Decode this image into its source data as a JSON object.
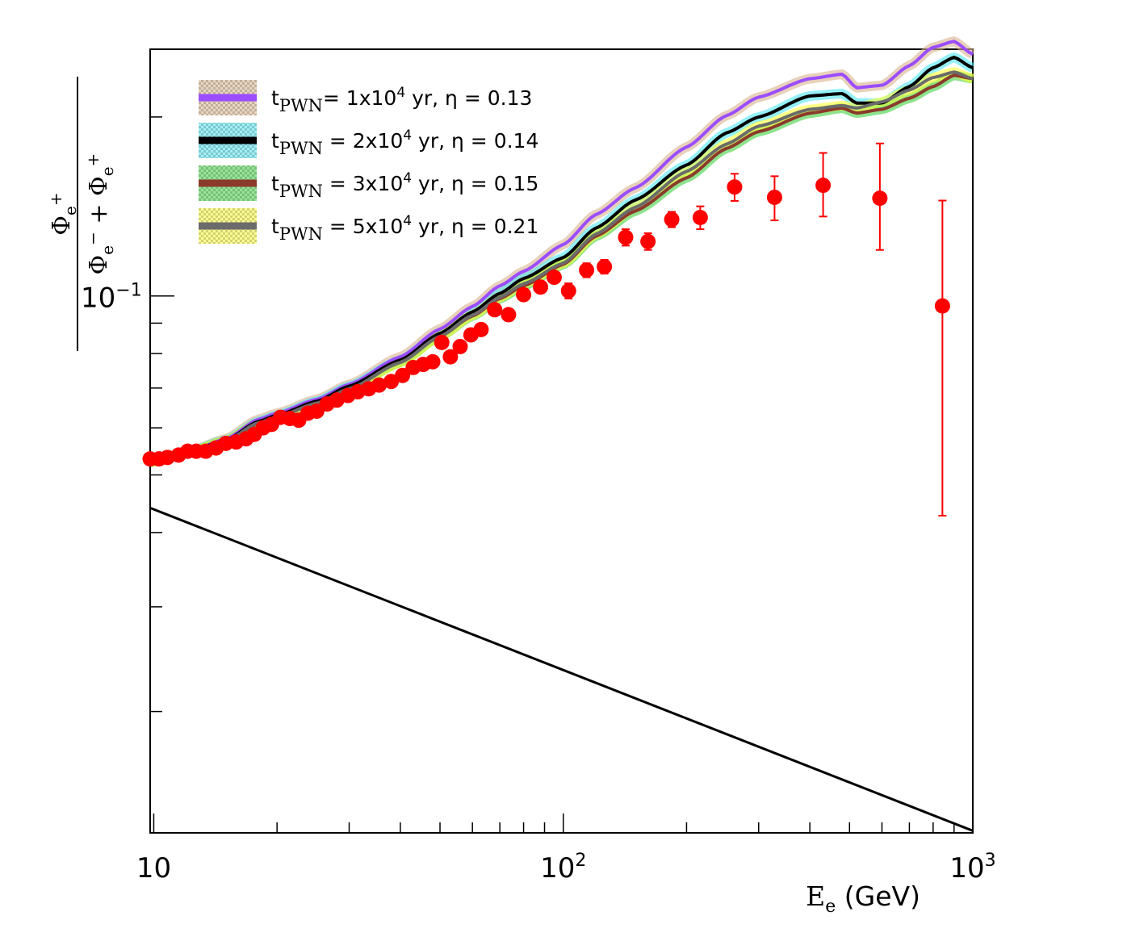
{
  "chart_data": {
    "type": "line",
    "xscale": "log",
    "yscale": "log",
    "xlim": [
      9.8,
      1000
    ],
    "ylim": [
      0.0125,
      0.26
    ],
    "xlabel": {
      "main": "E",
      "sub": "e",
      "unit": " (GeV)"
    },
    "ylabel": {
      "numerator": {
        "sym": "Φ",
        "sub": "e",
        "sup": "+"
      },
      "denominator": [
        {
          "sym": "Φ",
          "sub": "e",
          "sup": "−"
        },
        {
          "sym": " + "
        },
        {
          "sym": "Φ",
          "sub": "e",
          "sup": "+"
        }
      ]
    },
    "x_tick_labels": [
      {
        "value": 10,
        "base": "10",
        "exp": ""
      },
      {
        "value": 100,
        "base": "10",
        "exp": "2"
      },
      {
        "value": 1000,
        "base": "10",
        "exp": "3"
      }
    ],
    "y_tick_labels": [
      {
        "value": 0.1,
        "base": "10",
        "exp": "−1"
      }
    ],
    "legend": [
      {
        "pre": "t",
        "sub": "PWN",
        "text": "= 1x10",
        "sup": "4",
        "post": " yr, η = 0.13",
        "color": "#9b4dff",
        "band": "#d9b38c"
      },
      {
        "pre": "t",
        "sub": "PWN",
        "text": " = 2x10",
        "sup": "4",
        "post": " yr, η = 0.14",
        "color": "#000000",
        "band": "#4ee6f2"
      },
      {
        "pre": "t",
        "sub": "PWN",
        "text": " = 3x10",
        "sup": "4",
        "post": " yr, η = 0.15",
        "color": "#8b3a2b",
        "band": "#3fd13f"
      },
      {
        "pre": "t",
        "sub": "PWN",
        "text": " = 5x10",
        "sup": "4",
        "post": " yr, η = 0.21",
        "color": "#6b6b6b",
        "band": "#ffff33"
      }
    ],
    "series": [
      {
        "name": "tPWN = 1x10^4 yr, eta = 0.13",
        "color": "#9b4dff",
        "band_color": "#d9b38c",
        "x": [
          9.8,
          12,
          15,
          18,
          20,
          25,
          30,
          40,
          50,
          60,
          70,
          80,
          100,
          120,
          150,
          200,
          250,
          300,
          400,
          480,
          520,
          600,
          700,
          800,
          900,
          1000
        ],
        "y": [
          0.0525,
          0.0545,
          0.0575,
          0.062,
          0.0635,
          0.067,
          0.071,
          0.079,
          0.088,
          0.096,
          0.104,
          0.11,
          0.122,
          0.137,
          0.152,
          0.178,
          0.201,
          0.216,
          0.232,
          0.236,
          0.224,
          0.226,
          0.244,
          0.262,
          0.268,
          0.255
        ]
      },
      {
        "name": "tPWN = 2x10^4 yr, eta = 0.14",
        "color": "#000000",
        "band_color": "#4ee6f2",
        "x": [
          9.8,
          12,
          15,
          18,
          20,
          25,
          30,
          40,
          50,
          60,
          70,
          80,
          100,
          120,
          150,
          200,
          250,
          300,
          400,
          480,
          520,
          600,
          700,
          800,
          900,
          1000
        ],
        "y": [
          0.0525,
          0.0545,
          0.0572,
          0.0615,
          0.063,
          0.0665,
          0.0705,
          0.078,
          0.0865,
          0.094,
          0.101,
          0.107,
          0.116,
          0.13,
          0.145,
          0.166,
          0.188,
          0.2,
          0.217,
          0.219,
          0.211,
          0.211,
          0.225,
          0.242,
          0.252,
          0.242
        ]
      },
      {
        "name": "tPWN = 3x10^4 yr, eta = 0.15",
        "color": "#8b3a2b",
        "band_color": "#3fd13f",
        "x": [
          9.8,
          12,
          15,
          18,
          20,
          25,
          30,
          40,
          50,
          60,
          70,
          80,
          100,
          120,
          150,
          200,
          250,
          300,
          400,
          480,
          520,
          600,
          700,
          800,
          900,
          1000
        ],
        "y": [
          0.0525,
          0.0544,
          0.057,
          0.061,
          0.0626,
          0.066,
          0.0698,
          0.0773,
          0.0855,
          0.0925,
          0.099,
          0.104,
          0.113,
          0.126,
          0.139,
          0.158,
          0.177,
          0.189,
          0.203,
          0.207,
          0.203,
          0.206,
          0.215,
          0.225,
          0.235,
          0.232
        ]
      },
      {
        "name": "tPWN = 5x10^4 yr, eta = 0.21",
        "color": "#6b6b6b",
        "band_color": "#ffff33",
        "x": [
          9.8,
          12,
          15,
          18,
          20,
          25,
          30,
          40,
          50,
          60,
          70,
          80,
          100,
          120,
          150,
          200,
          250,
          300,
          400,
          480,
          520,
          600,
          700,
          800,
          900,
          1000
        ],
        "y": [
          0.0525,
          0.0544,
          0.057,
          0.0612,
          0.0626,
          0.066,
          0.0698,
          0.0773,
          0.0855,
          0.0928,
          0.0995,
          0.1048,
          0.1135,
          0.127,
          0.141,
          0.162,
          0.18,
          0.193,
          0.206,
          0.209,
          0.207,
          0.212,
          0.222,
          0.233,
          0.238,
          0.232
        ]
      },
      {
        "name": "secondary background",
        "color": "#000000",
        "x": [
          9.8,
          1000
        ],
        "y": [
          0.044,
          0.0126
        ]
      }
    ],
    "data_points": {
      "name": "positron fraction data",
      "color": "#ff0000",
      "x": [
        9.8,
        10.3,
        10.8,
        11.5,
        12.1,
        12.7,
        13.4,
        14.2,
        15,
        15.9,
        16.8,
        17.6,
        18.5,
        19.4,
        20.4,
        21.5,
        22.6,
        23.8,
        25,
        26.5,
        28,
        29.8,
        31.5,
        33.5,
        35.5,
        38,
        40.5,
        43,
        45.5,
        48,
        50.5,
        53,
        56,
        59.5,
        63,
        68,
        73.5,
        80,
        88,
        95,
        103,
        114,
        126,
        142,
        161,
        184,
        216,
        262,
        328,
        431,
        593,
        843
      ],
      "y": [
        0.0532,
        0.0532,
        0.0535,
        0.054,
        0.0548,
        0.0548,
        0.0548,
        0.0555,
        0.0565,
        0.0568,
        0.0575,
        0.0585,
        0.06,
        0.0608,
        0.0625,
        0.0622,
        0.0618,
        0.0635,
        0.064,
        0.0658,
        0.0668,
        0.068,
        0.069,
        0.0698,
        0.0708,
        0.0718,
        0.0735,
        0.0758,
        0.0767,
        0.0775,
        0.0835,
        0.079,
        0.0822,
        0.086,
        0.0878,
        0.0948,
        0.093,
        0.1005,
        0.1035,
        0.1075,
        0.102,
        0.1105,
        0.112,
        0.1255,
        0.1235,
        0.1345,
        0.1355,
        0.1525,
        0.1465,
        0.1535,
        0.146,
        0.0962
      ],
      "err_lo": [
        0,
        0,
        0,
        0,
        0,
        0,
        0,
        0,
        0,
        0,
        0,
        0,
        0,
        0,
        0,
        0,
        0,
        0,
        0,
        0,
        0,
        0,
        0,
        0,
        0,
        0,
        0,
        0,
        0,
        0,
        0,
        0,
        0,
        0,
        0,
        0,
        0,
        0,
        0,
        0,
        0.003,
        0.003,
        0.003,
        0.004,
        0.004,
        0.004,
        0.006,
        0.008,
        0.0125,
        0.0175,
        0.0265,
        0.0535
      ],
      "err_hi": [
        0,
        0,
        0,
        0,
        0,
        0,
        0,
        0,
        0,
        0,
        0,
        0,
        0,
        0,
        0,
        0,
        0,
        0,
        0,
        0,
        0,
        0,
        0,
        0,
        0,
        0,
        0,
        0,
        0,
        0,
        0,
        0,
        0,
        0,
        0,
        0,
        0,
        0,
        0,
        0,
        0.003,
        0.003,
        0.003,
        0.004,
        0.004,
        0.004,
        0.006,
        0.008,
        0.0125,
        0.0205,
        0.0345,
        0.0485
      ]
    }
  }
}
